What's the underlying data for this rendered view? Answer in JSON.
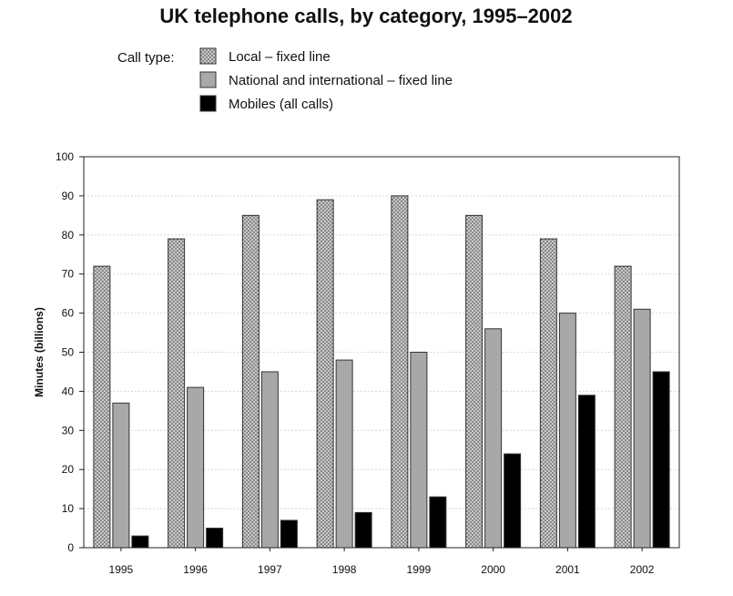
{
  "chart_data": {
    "type": "bar",
    "title": "UK telephone calls, by category, 1995–2002",
    "legend_title": "Call type:",
    "categories": [
      "1995",
      "1996",
      "1997",
      "1998",
      "1999",
      "2000",
      "2001",
      "2002"
    ],
    "series": [
      {
        "name": "Local – fixed line",
        "values": [
          72,
          79,
          85,
          89,
          90,
          85,
          79,
          72
        ],
        "fill": "dotted-gray"
      },
      {
        "name": "National and international – fixed line",
        "values": [
          37,
          41,
          45,
          48,
          50,
          56,
          60,
          61
        ],
        "fill": "#a8a8a8"
      },
      {
        "name": "Mobiles (all calls)",
        "values": [
          3,
          5,
          7,
          9,
          13,
          24,
          39,
          45
        ],
        "fill": "#000000"
      }
    ],
    "xlabel": "",
    "ylabel": "Minutes (billions)",
    "ylim": [
      0,
      100
    ],
    "yticks": [
      0,
      10,
      20,
      30,
      40,
      50,
      60,
      70,
      80,
      90,
      100
    ],
    "grid": true,
    "legend_position": "top"
  }
}
